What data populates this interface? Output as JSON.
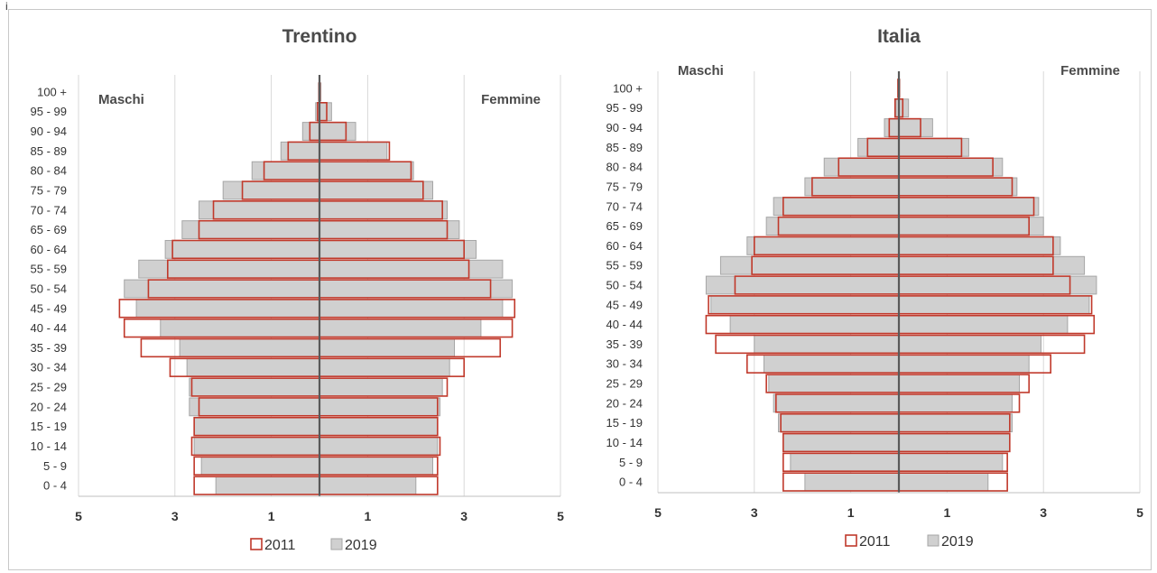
{
  "header": {
    "pre_text": "i"
  },
  "colors": {
    "bar2019_fill": "#d0d0d0",
    "bar2019_stroke": "#a6a6a6",
    "bar2011_stroke": "#c0392b",
    "axis": "#595959"
  },
  "chart_data": [
    {
      "type": "population-pyramid",
      "title": "Trentino",
      "left_label": "Maschi",
      "right_label": "Femmine",
      "x_tick_labels": [
        "5",
        "3",
        "1",
        "1",
        "3",
        "5"
      ],
      "xlim": [
        -5,
        5
      ],
      "categories": [
        "0 - 4",
        "5 - 9",
        "10 - 14",
        "15 - 19",
        "20 - 24",
        "25 - 29",
        "30 - 34",
        "35 - 39",
        "40 - 44",
        "45 - 49",
        "50 - 54",
        "55 - 59",
        "60 - 64",
        "65 - 69",
        "70 - 74",
        "75 - 79",
        "80 - 84",
        "85 - 89",
        "90 - 94",
        "95 - 99",
        "100 +"
      ],
      "series": [
        {
          "name": "2019",
          "style": "filled",
          "males": [
            2.15,
            2.45,
            2.6,
            2.6,
            2.7,
            2.7,
            2.75,
            2.9,
            3.3,
            3.8,
            4.05,
            3.75,
            3.2,
            2.85,
            2.5,
            2.0,
            1.4,
            0.8,
            0.35,
            0.08,
            0.02
          ],
          "females": [
            2.0,
            2.35,
            2.45,
            2.45,
            2.5,
            2.55,
            2.7,
            2.8,
            3.35,
            3.8,
            4.0,
            3.8,
            3.25,
            2.9,
            2.65,
            2.35,
            1.95,
            1.4,
            0.75,
            0.25,
            0.03
          ]
        },
        {
          "name": "2011",
          "style": "outline",
          "males": [
            2.6,
            2.6,
            2.65,
            2.6,
            2.5,
            2.65,
            3.1,
            3.7,
            4.05,
            4.15,
            3.55,
            3.15,
            3.05,
            2.5,
            2.2,
            1.6,
            1.15,
            0.65,
            0.2,
            0.04,
            0.01
          ],
          "females": [
            2.45,
            2.45,
            2.5,
            2.45,
            2.45,
            2.65,
            3.0,
            3.75,
            4.0,
            4.05,
            3.55,
            3.1,
            3.0,
            2.65,
            2.55,
            2.15,
            1.9,
            1.45,
            0.55,
            0.15,
            0.01
          ]
        }
      ]
    },
    {
      "type": "population-pyramid",
      "title": "Italia",
      "left_label": "Maschi",
      "right_label": "Femmine",
      "x_tick_labels": [
        "5",
        "3",
        "1",
        "1",
        "3",
        "5"
      ],
      "xlim": [
        -5,
        5
      ],
      "categories": [
        "0 - 4",
        "5 - 9",
        "10 - 14",
        "15 - 19",
        "20 - 24",
        "25 - 29",
        "30 - 34",
        "35 - 39",
        "40 - 44",
        "45 - 49",
        "50 - 54",
        "55 - 59",
        "60 - 64",
        "65 - 69",
        "70 - 74",
        "75 - 79",
        "80 - 84",
        "85 - 89",
        "90 - 94",
        "95 - 99",
        "100 +"
      ],
      "series": [
        {
          "name": "2019",
          "style": "filled",
          "males": [
            1.95,
            2.25,
            2.4,
            2.5,
            2.6,
            2.7,
            2.8,
            3.0,
            3.5,
            3.9,
            4.0,
            3.7,
            3.15,
            2.75,
            2.6,
            1.95,
            1.55,
            0.85,
            0.3,
            0.06,
            0.01
          ],
          "females": [
            1.85,
            2.15,
            2.3,
            2.35,
            2.35,
            2.5,
            2.7,
            2.95,
            3.5,
            3.95,
            4.1,
            3.85,
            3.35,
            3.0,
            2.9,
            2.45,
            2.15,
            1.45,
            0.7,
            0.2,
            0.02
          ]
        },
        {
          "name": "2011",
          "style": "outline",
          "males": [
            2.4,
            2.4,
            2.4,
            2.45,
            2.55,
            2.75,
            3.15,
            3.8,
            4.0,
            3.95,
            3.4,
            3.05,
            3.0,
            2.5,
            2.4,
            1.8,
            1.25,
            0.65,
            0.2,
            0.08,
            0.02
          ],
          "females": [
            2.25,
            2.25,
            2.3,
            2.3,
            2.5,
            2.7,
            3.15,
            3.85,
            4.05,
            4.0,
            3.55,
            3.2,
            3.2,
            2.7,
            2.8,
            2.35,
            1.95,
            1.3,
            0.45,
            0.08,
            0.01
          ]
        }
      ]
    }
  ]
}
